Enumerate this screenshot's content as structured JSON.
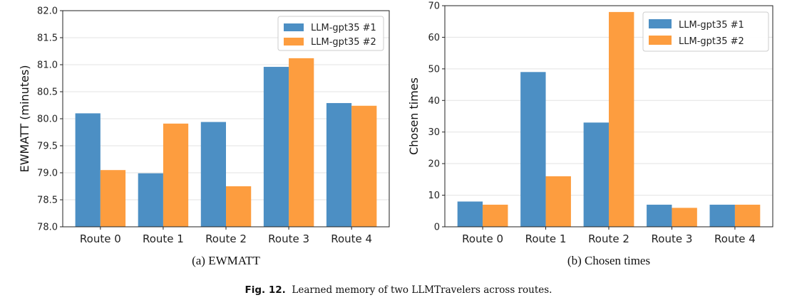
{
  "colors": {
    "series1": "#4c8fc4",
    "series2": "#fd9d3f",
    "grid": "#e3e3e3",
    "axis": "#222222"
  },
  "caption": {
    "label": "Fig. 12.",
    "text": "Learned memory of two LLMTravelers across routes."
  },
  "chart_data": [
    {
      "type": "bar",
      "title": "",
      "subcaption": "(a) EWMATT",
      "xlabel": "",
      "ylabel": "EWMATT (minutes)",
      "categories": [
        "Route 0",
        "Route 1",
        "Route 2",
        "Route 3",
        "Route 4"
      ],
      "series": [
        {
          "name": "LLM-gpt35 #1",
          "values": [
            80.1,
            78.99,
            79.94,
            80.96,
            80.29
          ]
        },
        {
          "name": "LLM-gpt35 #2",
          "values": [
            79.05,
            79.91,
            78.75,
            81.12,
            80.24
          ]
        }
      ],
      "ylim": [
        78.0,
        82.0
      ],
      "yticks": [
        "78.0",
        "78.5",
        "79.0",
        "79.5",
        "80.0",
        "80.5",
        "81.0",
        "81.5",
        "82.0"
      ],
      "grid": true,
      "legend": "top-right"
    },
    {
      "type": "bar",
      "title": "",
      "subcaption": "(b) Chosen times",
      "xlabel": "",
      "ylabel": "Chosen times",
      "categories": [
        "Route 0",
        "Route 1",
        "Route 2",
        "Route 3",
        "Route 4"
      ],
      "series": [
        {
          "name": "LLM-gpt35 #1",
          "values": [
            8,
            49,
            33,
            7,
            7
          ]
        },
        {
          "name": "LLM-gpt35 #2",
          "values": [
            7,
            16,
            68,
            6,
            7
          ]
        }
      ],
      "ylim": [
        0,
        70
      ],
      "yticks": [
        "0",
        "10",
        "20",
        "30",
        "40",
        "50",
        "60",
        "70"
      ],
      "grid": true,
      "legend": "top-right"
    }
  ]
}
